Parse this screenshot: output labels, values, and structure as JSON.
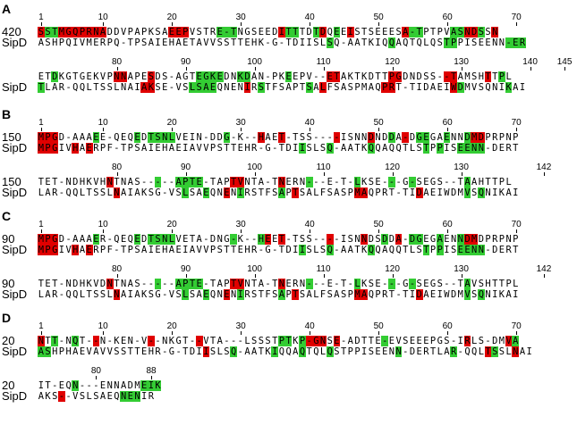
{
  "panels": [
    {
      "letter": "A",
      "blocks": [
        {
          "ticks": [
            1,
            10,
            20,
            30,
            40,
            50,
            60,
            70
          ],
          "rows": [
            {
              "name": "420",
              "seq": "SSTMGQPRNADDVPAPKSAEEPVSTRE-TNGSEEDITTTDTDQEEISTSEEESA-TPTPVASNDSSN",
              "hl": "rggrrrrrrr.........rrr....ggg......rgg..gr.g.r.......rgg....ggrrg.rr.gr"
            },
            {
              "name": "SipD",
              "seq": "ASHPQIVMERPQ-TPSAIEHAETAVVSSTTEHK-G-TDIISLSQ-AATKIQQAQTQLQSTPPISEENN-ER",
              "hl": "..........................................g........g.......gg.......ggg"
            }
          ]
        },
        {
          "ticks": [
            80,
            90,
            100,
            110,
            120,
            130,
            140,
            145
          ],
          "rows": [
            {
              "name": "",
              "seq": "ETDKGTGEKVPNNAPESDS-AGTEGKEDNKDAN-PKEEPV--ETAKTKDTTPGDNDSS--TAMSHTTPL",
              "hl": "..g........rr...r......gggg..gg.....g.....rr.......rr......rr....r.g"
            },
            {
              "name": "SipD",
              "seq": "TLAR-QQLTSSLNAIAKSE-VSLSAEQNENIRSTFSAPTSALFSASPMAQPRT-TIDAEIWDMVSQNIKAI",
              "hl": "g..............rr.....gggg....r.g......g.r........rr........rg......g"
            }
          ]
        }
      ]
    },
    {
      "letter": "B",
      "blocks": [
        {
          "ticks": [
            1,
            10,
            20,
            30,
            40,
            50,
            60,
            70
          ],
          "rows": [
            {
              "name": "150",
              "seq": "MPGD-AAAEE-QEQEDTSNLVEIN-DDG-K--HAET-TSS----ISNNDNDDA-DGEGAENNDMDPRPNP",
              "hl": "rrr.....g.....g.gggg.......g....r..r.......r....r..g.r.gg..g..grr....."
            },
            {
              "name": "SipD",
              "seq": "MPGIVHAERPF-TPSAIEHAEIAVVPSTTEHR-G-TDIISLSQ-AATKQQAQQTLSTPPISEENN-DERT",
              "hl": "rrr..r.r..............................g...g.....g.......g.g..gggg...."
            }
          ]
        },
        {
          "ticks": [
            80,
            90,
            100,
            110,
            120,
            130,
            142
          ],
          "rows": [
            {
              "name": "150",
              "seq": "TET-NDHKVHNTNAS-----APTE-TAPTVNTA-TNERN---E-T-LKSE---G-SEGS--TAAHTTPL",
              "hl": "..........r......g..gggg....rr.....r...g......g....g..g.......g"
            },
            {
              "name": "SipD",
              "seq": "LAR-QQLTSSLNAIAKSG-VSLSAEQNENIRSTFSAPTSALFSASPMAQPRT-TIDAEIWDMVSQNIKAI",
              "hl": "...........r.........g..g..r.g.....g.r........rr.......r......g.g"
            }
          ]
        }
      ]
    },
    {
      "letter": "C",
      "blocks": [
        {
          "ticks": [
            1,
            10,
            20,
            30,
            40,
            50,
            60,
            70
          ],
          "rows": [
            {
              "name": "90",
              "seq": "MPGD-AAAER-QEQEDTSNLVETA-DNG-K--HEET-TSS----ISNNDSDDA-DGEGAENNDMDPRPNP",
              "hl": "rrr.....g.....g.gggg........g...gr.r......r....r..g.r.gg..g..grr....."
            },
            {
              "name": "SipD",
              "seq": "MPGIVHAERPF-TPSAIEHAEIAVVPSTTEHR-G-TDIISLSQ-AATKQQAQQTLSTPPISEENN-DERT",
              "hl": "rrr..r.r..............................g...g.....g.......g.g..gggg...."
            }
          ]
        },
        {
          "ticks": [
            80,
            90,
            100,
            110,
            120,
            130,
            142
          ],
          "rows": [
            {
              "name": "90",
              "seq": "TET-NDHKVDNTNAS-----APTE-TAPTVNTA-TNERN---E-T-LKSE---G-SEGS--TAVSHTTPL",
              "hl": "..........r......g..gggg....rr.....r...g......g....g..g.......g"
            },
            {
              "name": "SipD",
              "seq": "LAR-QQLTSSLNAIAKSG-VSLSAEQNENIRSTFSAPTSALFSASPMAQPRT-TIDAEIWDMVSQNIKAI",
              "hl": "...........r.........g..g..r.g.....g.r........rr.......r......g.g"
            }
          ]
        }
      ]
    },
    {
      "letter": "D",
      "blocks": [
        {
          "ticks": [
            1,
            10,
            20,
            30,
            40,
            50,
            60,
            70
          ],
          "rows": [
            {
              "name": "20",
              "seq": "NTT-NQT--N-KEN-V--NKGT--VTA---LSSSTPTKP-GNSE-ADTTE-EVSEEEPGS-IRLS-DMVA",
              "hl": "r.g..g..r.......r......r...........gg.grrr.r......g...........r.....rg"
            },
            {
              "name": "SipD",
              "seq": "ASHPHAEVAVVSSTTEHR-G-TDIISLSQ-AATKIQQAQTQLQSTPPISEENN-DERTLAR-QQLTSSLNAI",
              "hl": "gg......................r...g.....g...g...g.........g.......g....rg..r"
            }
          ]
        },
        {
          "ticks": [
            80,
            88
          ],
          "rows": [
            {
              "name": "20",
              "seq": "IT-EQN---ENNADMEIK",
              "hl": ".....g.........ggg"
            },
            {
              "name": "SipD",
              "seq": "AKS--VSLSAEQNENIR",
              "hl": "...r........ggg"
            }
          ]
        }
      ]
    }
  ],
  "colors": {
    "red": "#e00000",
    "green": "#33cc33"
  }
}
